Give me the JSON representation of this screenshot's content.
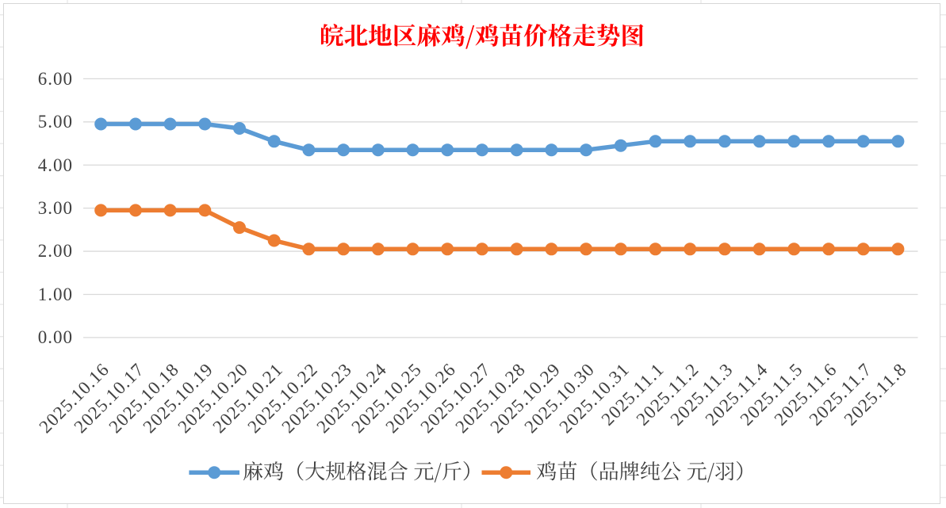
{
  "chart": {
    "title": {
      "text": "皖北地区麻鸡/鸡苗价格走势图",
      "color": "#FF0000"
    }
  },
  "chart_data": {
    "type": "line",
    "title": "皖北地区麻鸡/鸡苗价格走势图",
    "categories": [
      "2025.10.16",
      "2025.10.17",
      "2025.10.18",
      "2025.10.19",
      "2025.10.20",
      "2025.10.21",
      "2025.10.22",
      "2025.10.23",
      "2025.10.24",
      "2025.10.25",
      "2025.10.26",
      "2025.10.27",
      "2025.10.28",
      "2025.10.29",
      "2025.10.30",
      "2025.10.31",
      "2025.11.1",
      "2025.11.2",
      "2025.11.3",
      "2025.11.4",
      "2025.11.5",
      "2025.11.6",
      "2025.11.7",
      "2025.11.8"
    ],
    "series": [
      {
        "name": "麻鸡（大规格混合 元/斤）",
        "color": "#5B9BD5",
        "values": [
          4.95,
          4.95,
          4.95,
          4.95,
          4.85,
          4.55,
          4.35,
          4.35,
          4.35,
          4.35,
          4.35,
          4.35,
          4.35,
          4.35,
          4.35,
          4.45,
          4.55,
          4.55,
          4.55,
          4.55,
          4.55,
          4.55,
          4.55,
          4.55
        ]
      },
      {
        "name": "鸡苗（品牌纯公 元/羽）",
        "color": "#ED7D31",
        "values": [
          2.95,
          2.95,
          2.95,
          2.95,
          2.55,
          2.25,
          2.05,
          2.05,
          2.05,
          2.05,
          2.05,
          2.05,
          2.05,
          2.05,
          2.05,
          2.05,
          2.05,
          2.05,
          2.05,
          2.05,
          2.05,
          2.05,
          2.05,
          2.05
        ]
      }
    ],
    "xlabel": "",
    "ylabel": "",
    "ylim": [
      0,
      6
    ],
    "ytick_step": 1,
    "ytick_labels": [
      "0.00",
      "1.00",
      "2.00",
      "3.00",
      "4.00",
      "5.00",
      "6.00"
    ],
    "grid": true,
    "legend_position": "bottom",
    "marker": "circle"
  }
}
